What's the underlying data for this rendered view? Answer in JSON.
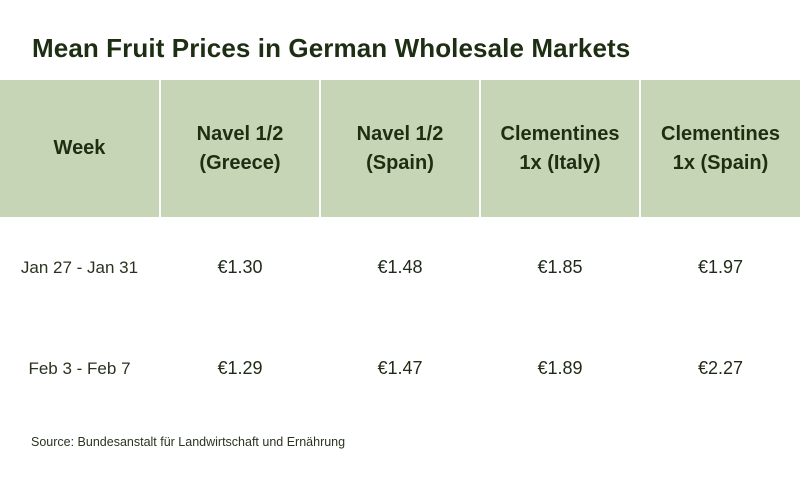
{
  "title": "Mean Fruit Prices in German Wholesale Markets",
  "source": "Source: Bundesanstalt für Landwirtschaft und Ernährung",
  "colors": {
    "header_bg": "#c5d5b5",
    "title_text": "#1e2e13"
  },
  "chart_data": {
    "type": "table",
    "title": "Mean Fruit Prices in German Wholesale Markets",
    "columns": [
      "Week",
      "Navel 1/2\n(Greece)",
      "Navel 1/2\n(Spain)",
      "Clementines\n1x (Italy)",
      "Clementines\n1x (Spain)"
    ],
    "rows": [
      [
        "Jan 27 - Jan 31",
        "€1.30",
        "€1.48",
        "€1.85",
        "€1.97"
      ],
      [
        "Feb 3 - Feb 7",
        "€1.29",
        "€1.47",
        "€1.89",
        "€2.27"
      ]
    ]
  }
}
